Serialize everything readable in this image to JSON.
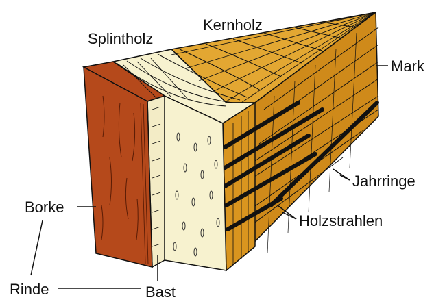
{
  "labels": {
    "splintholz": "Splintholz",
    "kernholz": "Kernholz",
    "mark": "Mark",
    "jahrringe": "Jahrringe",
    "holzstrahlen": "Holzstrahlen",
    "borke": "Borke",
    "rinde": "Rinde",
    "bast": "Bast"
  },
  "colors": {
    "bark": "#b5491b",
    "bark_dark": "#7a2a0c",
    "bast": "#f3ecc6",
    "sapwood": "#f7f2cf",
    "heartwood_top": "#e3a732",
    "heartwood_front": "#d9951f",
    "heartwood_side": "#cf8a1a",
    "ink": "#111111"
  }
}
